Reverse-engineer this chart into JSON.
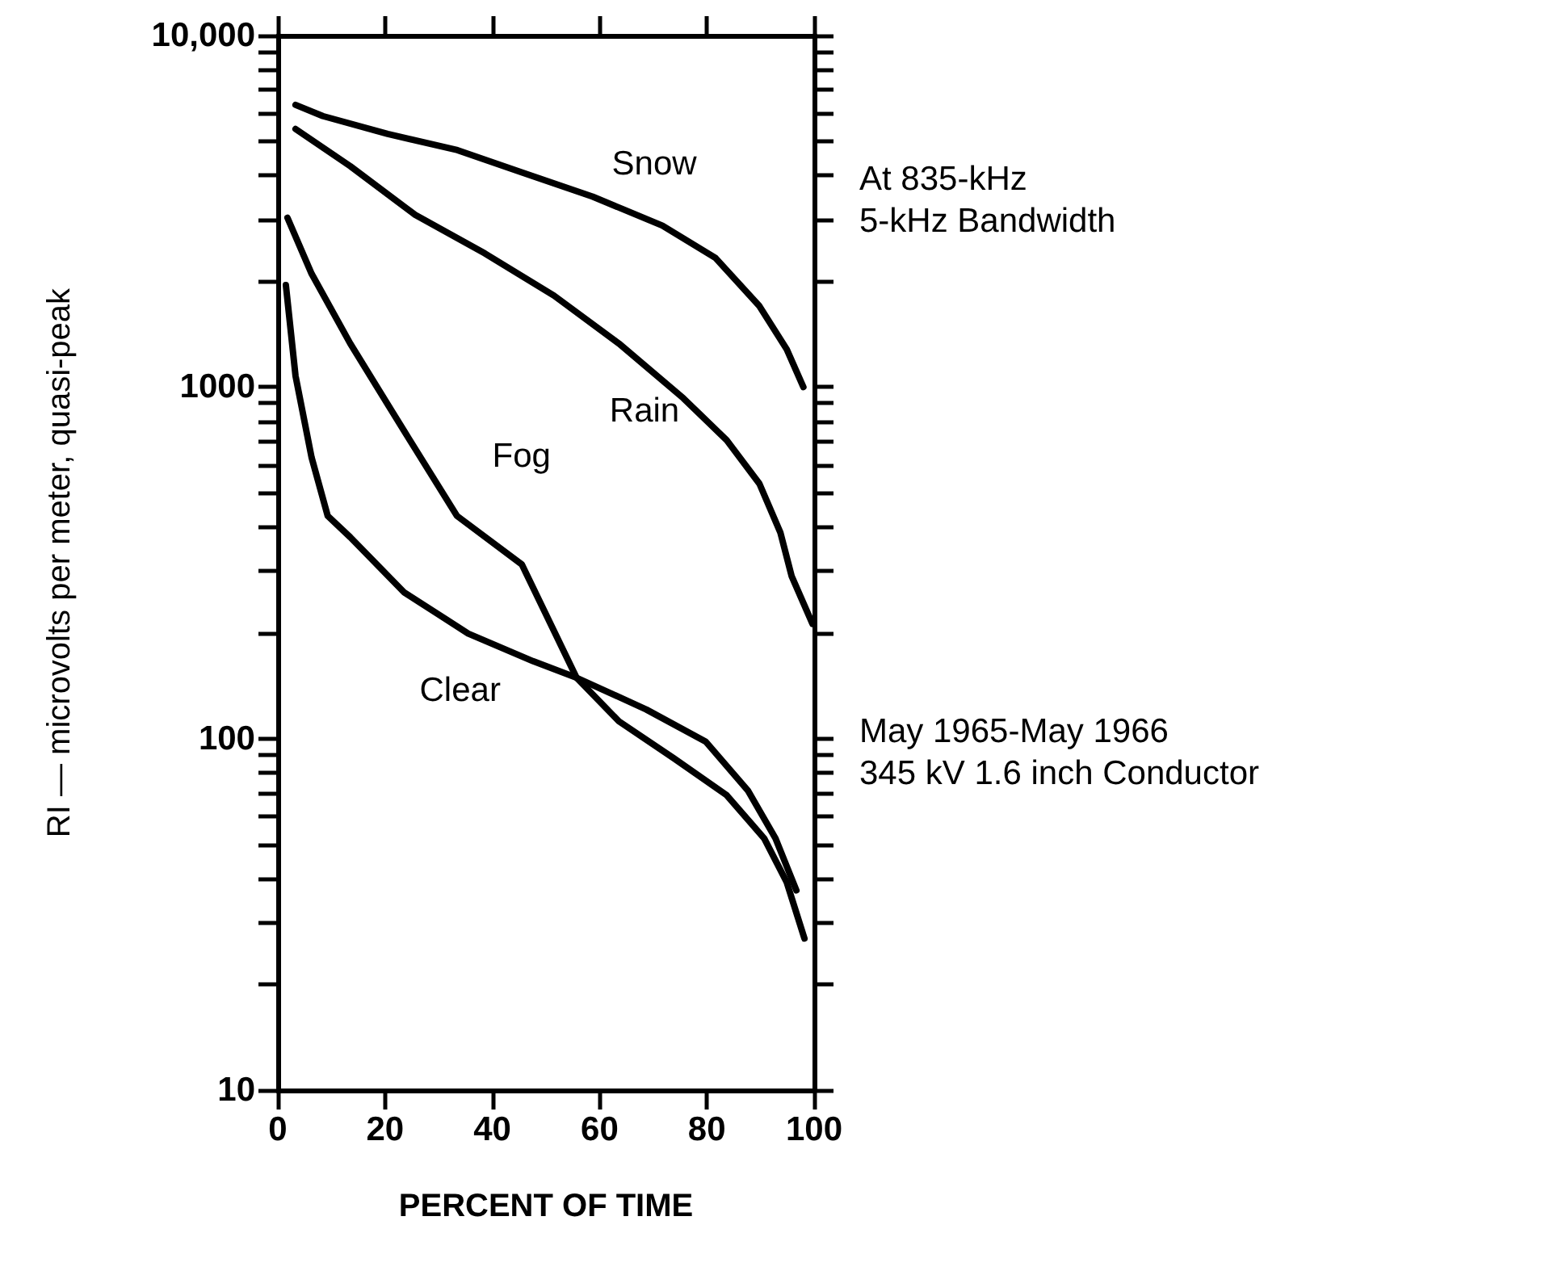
{
  "chart_data": {
    "type": "line",
    "xlabel": "PERCENT OF TIME",
    "ylabel": "RI — microvolts per meter, quasi-peak",
    "xlim": [
      0,
      100
    ],
    "xticks": [
      0,
      20,
      40,
      60,
      80,
      100
    ],
    "ylim": [
      10,
      10000
    ],
    "yticks": [
      10,
      {
        "value": 20,
        "label": null
      },
      {
        "value": 30,
        "label": null
      },
      {
        "value": 40,
        "label": null
      },
      {
        "value": 50,
        "label": null
      },
      {
        "value": 60,
        "label": null
      },
      {
        "value": 70,
        "label": null
      },
      {
        "value": 80,
        "label": null
      },
      {
        "value": 90,
        "label": null
      },
      100,
      {
        "value": 200,
        "label": null
      },
      {
        "value": 300,
        "label": null
      },
      {
        "value": 400,
        "label": null
      },
      {
        "value": 500,
        "label": null
      },
      {
        "value": 600,
        "label": null
      },
      {
        "value": 700,
        "label": null
      },
      {
        "value": 800,
        "label": null
      },
      {
        "value": 900,
        "label": null
      },
      1000,
      {
        "value": 2000,
        "label": null
      },
      {
        "value": 3000,
        "label": null
      },
      {
        "value": 4000,
        "label": null
      },
      {
        "value": 5000,
        "label": null
      },
      {
        "value": 6000,
        "label": null
      },
      {
        "value": 7000,
        "label": null
      },
      {
        "value": 8000,
        "label": null
      },
      {
        "value": 9000,
        "label": null
      },
      {
        "value": 10000,
        "label": "10,000"
      }
    ],
    "log": "y",
    "grid": false,
    "legend": false,
    "marker": "none",
    "line_style": "solid",
    "series": [
      {
        "name": "Snow",
        "color": "#000000",
        "x": [
          3.3,
          8.4,
          20.5,
          33.5,
          45.5,
          58.7,
          71.7,
          81.6,
          89.8,
          94.9,
          98
        ],
        "values": [
          6350,
          5900,
          5250,
          4720,
          4080,
          3480,
          2880,
          2330,
          1700,
          1280,
          1000
        ]
      },
      {
        "name": "Rain",
        "color": "#000000",
        "x": [
          3.3,
          13.5,
          25.6,
          38.6,
          51.5,
          63.6,
          75.6,
          83.7,
          89.8,
          93.7,
          95.8,
          99.7
        ],
        "values": [
          5420,
          4250,
          3090,
          2400,
          1820,
          1330,
          930,
          706,
          531,
          386,
          290,
          212
        ]
      },
      {
        "name": "Fog",
        "color": "#000000",
        "x": [
          1.8,
          6.3,
          13.5,
          23.5,
          33.4,
          45.5,
          55.7,
          63.6,
          73.8,
          83.7,
          90.7,
          94.9,
          98.2
        ],
        "values": [
          3030,
          2100,
          1330,
          752,
          430,
          313,
          149,
          112,
          88,
          69,
          52,
          39,
          27
        ]
      },
      {
        "name": "Clear",
        "color": "#000000",
        "x": [
          1.5,
          3.3,
          6.3,
          9.3,
          13.5,
          23.5,
          35.5,
          47.6,
          55.7,
          68.7,
          79.8,
          87.7,
          92.8,
          96.7
        ],
        "values": [
          1950,
          1076,
          630,
          430,
          374,
          261,
          199,
          166,
          149,
          121,
          98,
          71,
          52,
          37
        ]
      }
    ],
    "annotations": [
      "At 835-kHz\n5-kHz Bandwidth",
      "May 1965-May 1966\n345 kV 1.6 inch Conductor"
    ]
  }
}
